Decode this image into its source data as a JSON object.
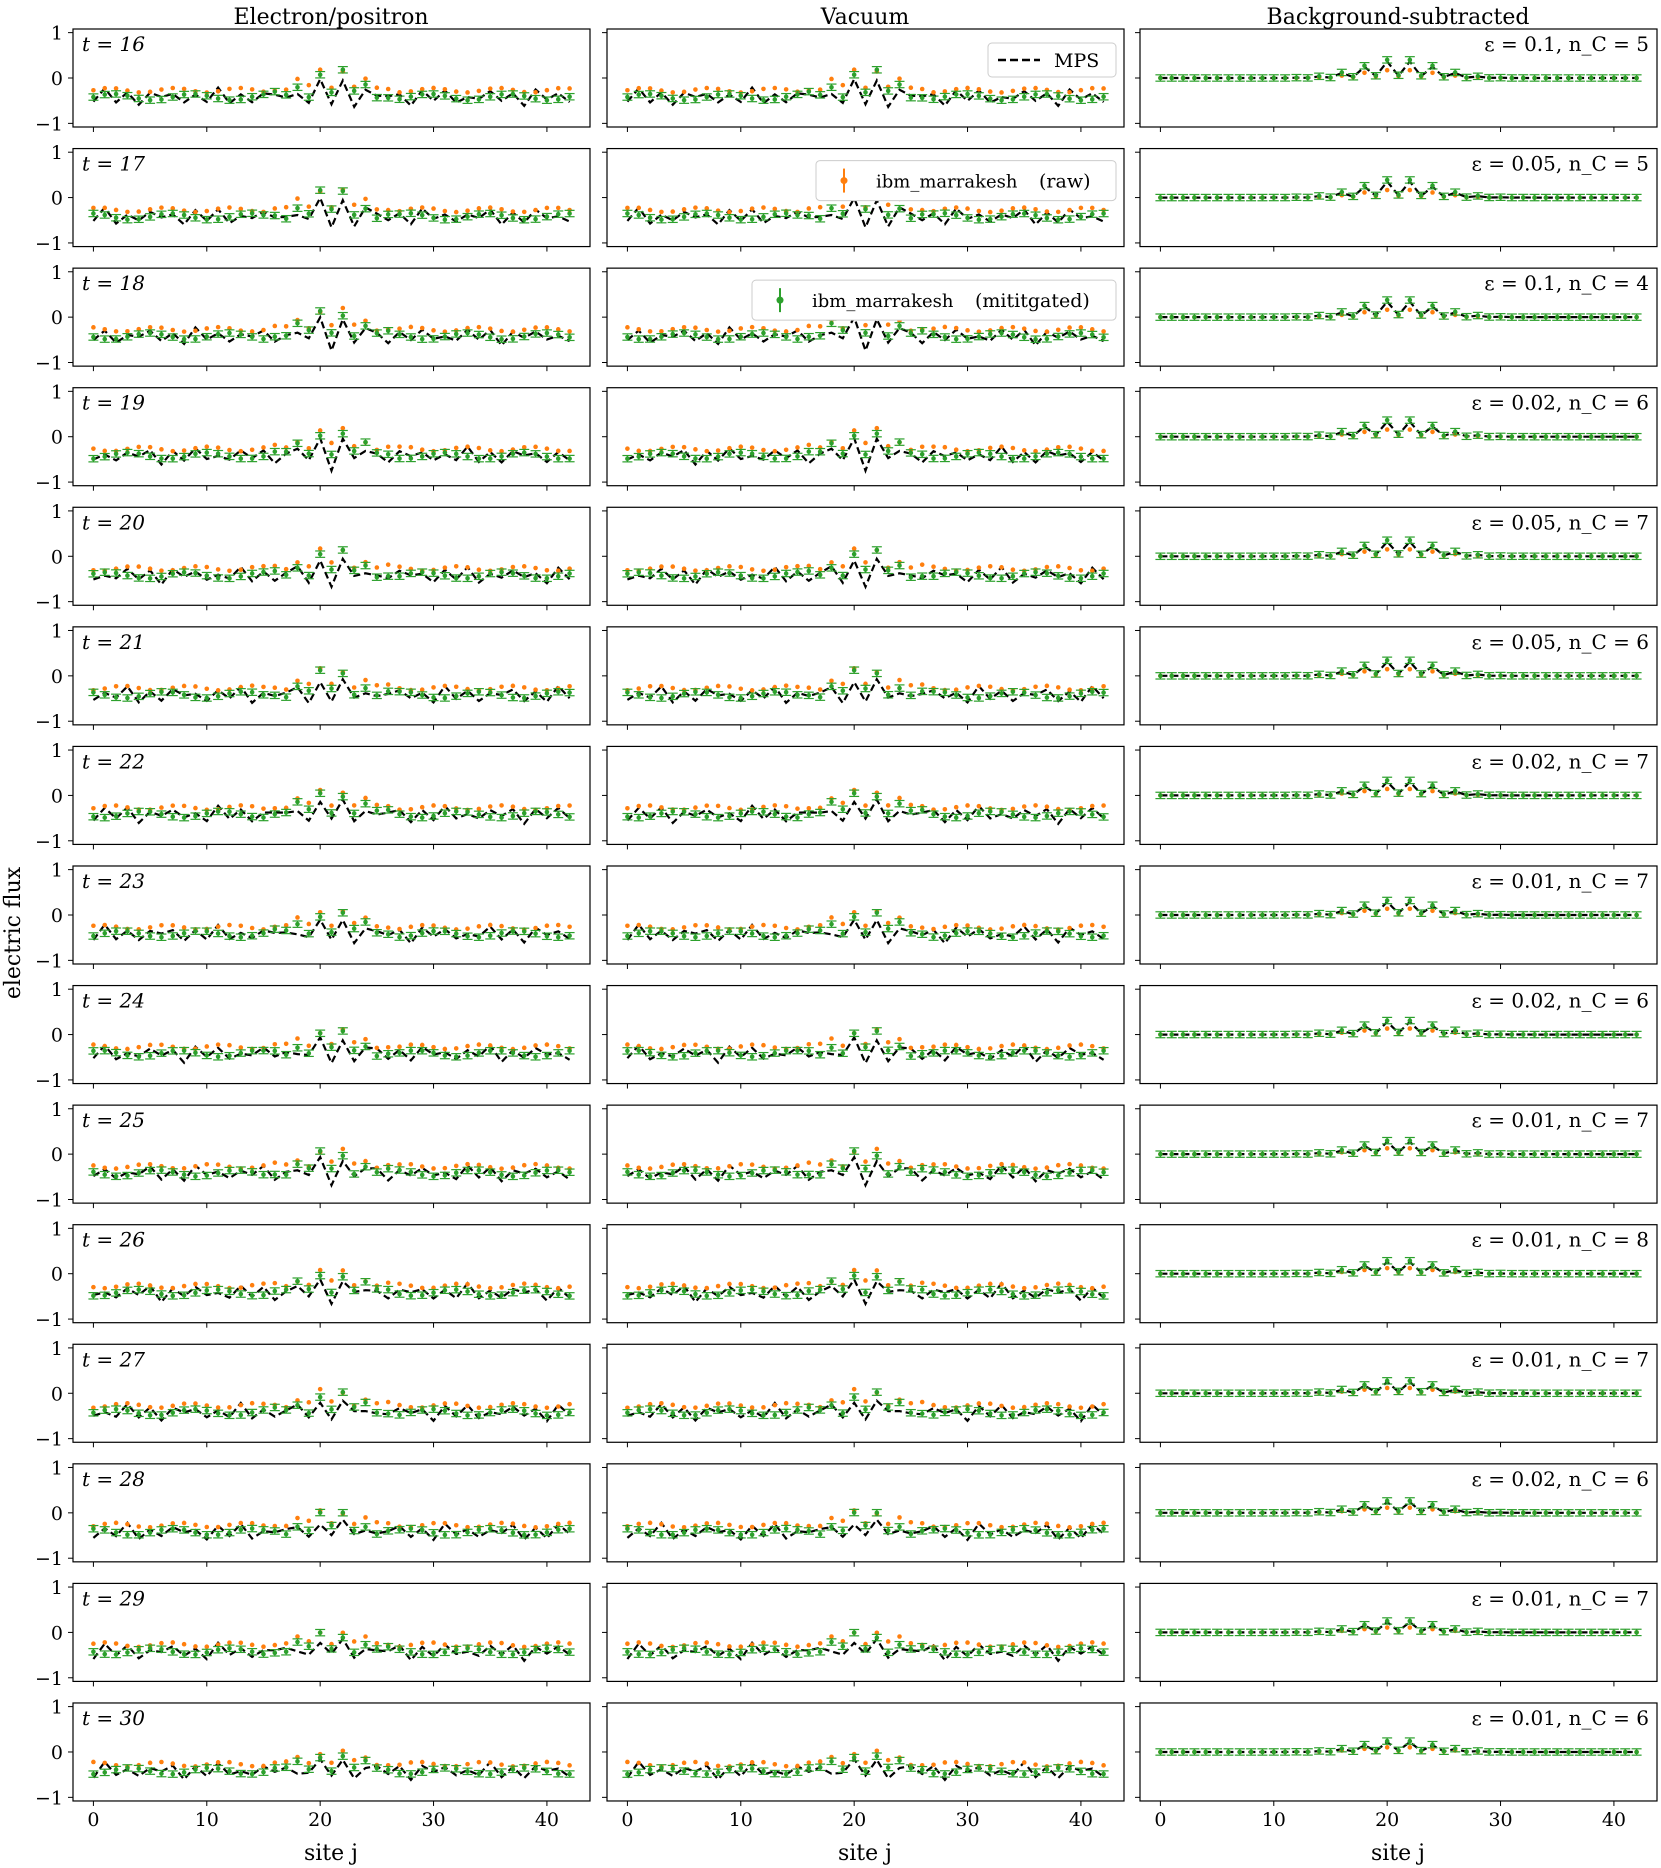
{
  "figure": {
    "ylabel": "electric flux",
    "xlabel": "site j",
    "columns": [
      "Electron/positron",
      "Vacuum",
      "Background-subtracted"
    ],
    "row_labels": [
      "t = 16",
      "t = 17",
      "t = 18",
      "t = 19",
      "t = 20",
      "t = 21",
      "t = 22",
      "t = 23",
      "t = 24",
      "t = 25",
      "t = 26",
      "t = 27",
      "t = 28",
      "t = 29",
      "t = 30"
    ],
    "bs_labels": [
      "ε = 0.1, n_C = 5",
      "ε = 0.05, n_C = 5",
      "ε = 0.1, n_C = 4",
      "ε = 0.02, n_C = 6",
      "ε = 0.05, n_C = 7",
      "ε = 0.05, n_C = 6",
      "ε = 0.02, n_C = 7",
      "ε = 0.01, n_C = 7",
      "ε = 0.02, n_C = 6",
      "ε = 0.01, n_C = 7",
      "ε = 0.01, n_C = 8",
      "ε = 0.01, n_C = 7",
      "ε = 0.02, n_C = 6",
      "ε = 0.01, n_C = 7",
      "ε = 0.01, n_C = 6"
    ],
    "legend": {
      "mps": "MPS",
      "raw_device": "ibm_marrakesh",
      "raw_suffix": "(raw)",
      "mit_device": "ibm_marrakesh",
      "mit_suffix": "(mititgated)"
    },
    "x_ticks": [
      "0",
      "10",
      "20",
      "30",
      "40"
    ],
    "y_ticks": [
      "1",
      "0",
      "−1"
    ],
    "colors": {
      "mps": "#000000",
      "raw": "#ff7f0e",
      "mitigated": "#2ca02c"
    }
  },
  "chart_data": {
    "type": "line",
    "layout": "15 rows x 3 columns of panels; series are MPS (dashed line), ibm_marrakesh raw and mitigated (points with error bars)",
    "x_range": [
      0,
      42
    ],
    "ylim": [
      -1.05,
      1.05
    ],
    "xticks": [
      0,
      10,
      20,
      30,
      40
    ],
    "yticks": [
      -1,
      0,
      1
    ],
    "grid": false,
    "legend_placement": "top-right of middle-column panels t = 16, 17, 18",
    "series_approx": "values read approximately: raw points oscillate about -0.3 at edges and rise near sites 17-25 with peaks ~0.5 at sites 20 and 22; mitigated points oscillate about -0.45 at edges; MPS oscillates between ~-0.7 and ~0.45; background-subtracted curves are ~0 except a bump of up to ~0.5 around sites 16-26",
    "series": [
      {
        "name": "MPS"
      },
      {
        "name": "ibm_marrakesh (raw)"
      },
      {
        "name": "ibm_marrakesh (mititgated)"
      }
    ]
  }
}
